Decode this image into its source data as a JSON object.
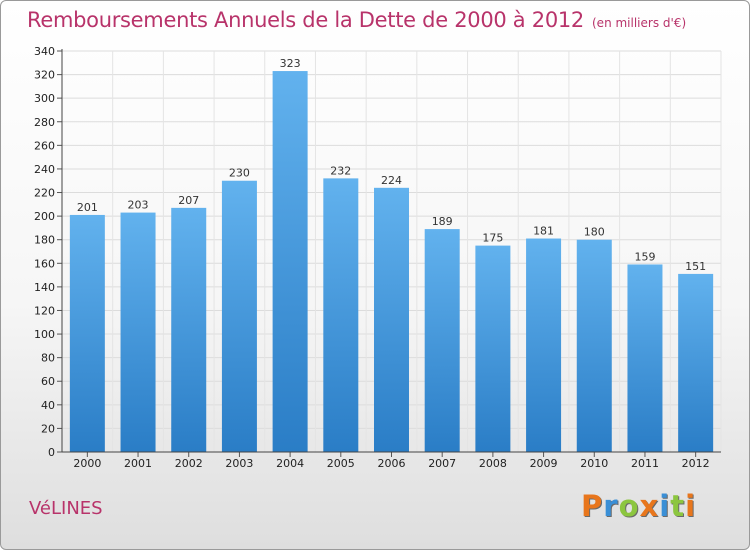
{
  "chart_data": {
    "type": "bar",
    "title": "Remboursements Annuels de la Dette de 2000 à 2012",
    "unit_note": "(en milliers d'€)",
    "categories": [
      "2000",
      "2001",
      "2002",
      "2003",
      "2004",
      "2005",
      "2006",
      "2007",
      "2008",
      "2009",
      "2010",
      "2011",
      "2012"
    ],
    "values": [
      201,
      203,
      207,
      230,
      323,
      232,
      224,
      189,
      175,
      181,
      180,
      159,
      151
    ],
    "ylim": [
      0,
      340
    ],
    "ytick_step": 20,
    "xlabel": "",
    "ylabel": "",
    "grid": true,
    "bar_color": "#3a8fd6"
  },
  "commune": "VéLINES",
  "logo": {
    "letters": [
      "P",
      "r",
      "o",
      "x",
      "i",
      "t",
      "i"
    ],
    "colors": [
      "#e8761c",
      "#3a8fd6",
      "#8cc63f",
      "#e8761c",
      "#3a8fd6",
      "#8cc63f",
      "#e8761c"
    ]
  }
}
